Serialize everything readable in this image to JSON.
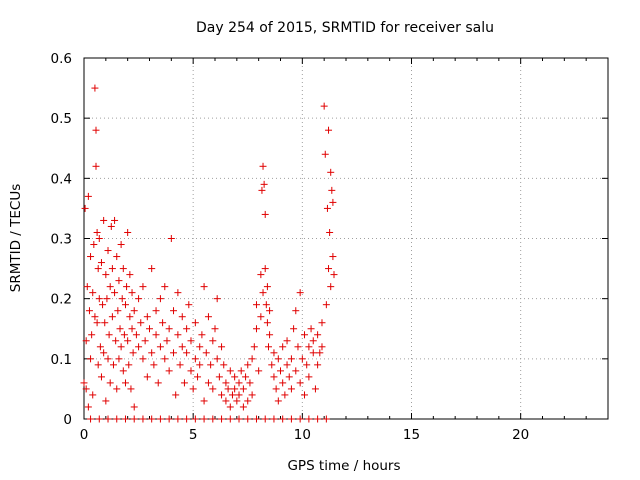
{
  "chart_data": {
    "type": "scatter",
    "title": "Day 254 of 2015, SRMTID for receiver salu",
    "xlabel": "GPS time / hours",
    "ylabel": "SRMTID / TECUs",
    "xlim": [
      0,
      24
    ],
    "ylim": [
      0,
      0.6
    ],
    "x_ticks": [
      0,
      5,
      10,
      15,
      20
    ],
    "y_ticks": [
      0,
      0.1,
      0.2,
      0.3,
      0.4,
      0.5,
      0.6
    ],
    "x_tick_labels": [
      "0",
      "5",
      "10",
      "15",
      "20"
    ],
    "y_tick_labels": [
      "0",
      "0.1",
      "0.2",
      "0.3",
      "0.4",
      "0.5",
      "0.6"
    ],
    "grid": true,
    "marker": "+",
    "series": [
      {
        "name": "SRMTID",
        "color": "#e00000",
        "x": [
          0.0,
          0.05,
          0.1,
          0.1,
          0.15,
          0.2,
          0.2,
          0.25,
          0.3,
          0.3,
          0.35,
          0.4,
          0.4,
          0.45,
          0.5,
          0.5,
          0.55,
          0.55,
          0.6,
          0.6,
          0.65,
          0.65,
          0.7,
          0.7,
          0.75,
          0.8,
          0.8,
          0.85,
          0.9,
          0.9,
          0.95,
          1.0,
          1.0,
          1.05,
          1.1,
          1.1,
          1.15,
          1.2,
          1.2,
          1.25,
          1.3,
          1.3,
          1.35,
          1.4,
          1.4,
          1.45,
          1.5,
          1.5,
          1.55,
          1.6,
          1.6,
          1.65,
          1.7,
          1.7,
          1.75,
          1.8,
          1.8,
          1.85,
          1.9,
          1.9,
          1.95,
          2.0,
          2.0,
          2.05,
          2.1,
          2.1,
          2.15,
          2.2,
          2.2,
          2.25,
          2.3,
          2.3,
          2.4,
          2.5,
          2.5,
          2.6,
          2.7,
          2.7,
          2.8,
          2.9,
          2.9,
          3.0,
          3.1,
          3.1,
          3.2,
          3.3,
          3.3,
          3.4,
          3.5,
          3.5,
          3.6,
          3.7,
          3.7,
          3.8,
          3.9,
          3.9,
          4.0,
          4.1,
          4.1,
          4.2,
          4.3,
          4.3,
          4.4,
          4.5,
          4.5,
          4.6,
          4.7,
          4.7,
          4.8,
          4.9,
          4.9,
          5.0,
          5.1,
          5.1,
          5.2,
          5.3,
          5.3,
          5.4,
          5.5,
          5.5,
          5.6,
          5.7,
          5.7,
          5.8,
          5.9,
          5.9,
          6.0,
          6.1,
          6.1,
          6.2,
          6.3,
          6.3,
          6.4,
          6.5,
          6.5,
          6.6,
          6.7,
          6.7,
          6.8,
          6.9,
          6.9,
          7.0,
          7.1,
          7.1,
          7.2,
          7.3,
          7.3,
          7.4,
          7.5,
          7.5,
          7.6,
          7.7,
          7.7,
          7.8,
          7.9,
          7.9,
          8.0,
          8.1,
          8.1,
          8.15,
          8.2,
          8.2,
          8.25,
          8.3,
          8.3,
          8.35,
          8.4,
          8.4,
          8.45,
          8.5,
          8.5,
          8.6,
          8.7,
          8.7,
          8.8,
          8.9,
          8.9,
          9.0,
          9.1,
          9.1,
          9.2,
          9.3,
          9.3,
          9.4,
          9.5,
          9.5,
          9.6,
          9.7,
          9.7,
          9.8,
          9.9,
          9.9,
          10.0,
          10.1,
          10.1,
          10.2,
          10.3,
          10.3,
          10.4,
          10.5,
          10.5,
          10.6,
          10.7,
          10.7,
          10.8,
          10.9,
          10.9,
          11.0,
          11.05,
          11.1,
          11.15,
          11.2,
          11.2,
          11.25,
          11.3,
          11.3,
          11.35,
          11.4,
          11.4,
          11.45,
          0.3,
          0.7,
          1.1,
          1.5,
          1.9,
          2.3,
          2.7,
          3.1,
          3.5,
          3.9,
          4.3,
          4.7,
          5.1,
          5.5,
          5.9,
          6.3,
          6.7,
          7.1,
          7.5,
          7.9,
          8.3,
          8.7,
          9.1,
          9.5,
          9.9,
          10.3,
          10.7,
          11.1
        ],
        "y": [
          0.06,
          0.35,
          0.13,
          0.05,
          0.22,
          0.37,
          0.02,
          0.18,
          0.1,
          0.27,
          0.14,
          0.21,
          0.04,
          0.29,
          0.17,
          0.55,
          0.48,
          0.42,
          0.16,
          0.31,
          0.25,
          0.09,
          0.2,
          0.3,
          0.12,
          0.26,
          0.07,
          0.19,
          0.33,
          0.11,
          0.16,
          0.24,
          0.03,
          0.2,
          0.28,
          0.1,
          0.14,
          0.22,
          0.06,
          0.32,
          0.17,
          0.25,
          0.09,
          0.21,
          0.33,
          0.13,
          0.27,
          0.05,
          0.18,
          0.23,
          0.1,
          0.15,
          0.29,
          0.12,
          0.2,
          0.08,
          0.25,
          0.14,
          0.19,
          0.06,
          0.22,
          0.13,
          0.31,
          0.09,
          0.17,
          0.24,
          0.05,
          0.15,
          0.21,
          0.11,
          0.18,
          0.02,
          0.14,
          0.12,
          0.2,
          0.16,
          0.1,
          0.22,
          0.13,
          0.07,
          0.17,
          0.15,
          0.11,
          0.25,
          0.09,
          0.18,
          0.14,
          0.06,
          0.12,
          0.2,
          0.16,
          0.1,
          0.22,
          0.13,
          0.08,
          0.15,
          0.3,
          0.11,
          0.18,
          0.04,
          0.14,
          0.21,
          0.09,
          0.12,
          0.17,
          0.06,
          0.15,
          0.11,
          0.19,
          0.08,
          0.13,
          0.05,
          0.1,
          0.16,
          0.07,
          0.12,
          0.09,
          0.14,
          0.03,
          0.22,
          0.11,
          0.06,
          0.17,
          0.09,
          0.13,
          0.05,
          0.15,
          0.1,
          0.2,
          0.07,
          0.12,
          0.04,
          0.09,
          0.06,
          0.03,
          0.05,
          0.08,
          0.02,
          0.04,
          0.07,
          0.05,
          0.03,
          0.06,
          0.04,
          0.08,
          0.02,
          0.05,
          0.07,
          0.03,
          0.09,
          0.06,
          0.1,
          0.04,
          0.12,
          0.19,
          0.15,
          0.08,
          0.24,
          0.17,
          0.38,
          0.42,
          0.21,
          0.39,
          0.34,
          0.25,
          0.19,
          0.16,
          0.22,
          0.12,
          0.18,
          0.14,
          0.09,
          0.11,
          0.07,
          0.05,
          0.1,
          0.03,
          0.08,
          0.12,
          0.06,
          0.04,
          0.09,
          0.13,
          0.07,
          0.05,
          0.1,
          0.15,
          0.08,
          0.18,
          0.12,
          0.21,
          0.06,
          0.1,
          0.14,
          0.04,
          0.09,
          0.12,
          0.07,
          0.15,
          0.11,
          0.13,
          0.05,
          0.09,
          0.14,
          0.11,
          0.16,
          0.12,
          0.52,
          0.44,
          0.19,
          0.35,
          0.25,
          0.48,
          0.31,
          0.41,
          0.22,
          0.38,
          0.27,
          0.36,
          0.24,
          0.0,
          0.0,
          0.0,
          0.0,
          0.0,
          0.0,
          0.0,
          0.0,
          0.0,
          0.0,
          0.0,
          0.0,
          0.0,
          0.0,
          0.0,
          0.0,
          0.0,
          0.0,
          0.0,
          0.0,
          0.0,
          0.0,
          0.0,
          0.0,
          0.0,
          0.0,
          0.0,
          0.0
        ]
      }
    ]
  }
}
